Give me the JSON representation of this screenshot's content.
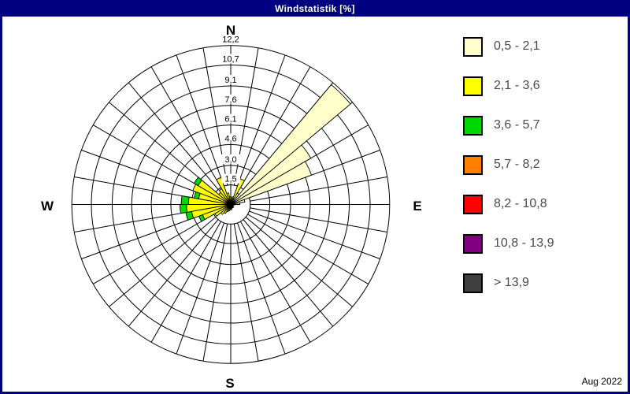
{
  "header": {
    "title": "Windstatistik [%]"
  },
  "chart_data": {
    "type": "wind-rose",
    "title": "Windstatistik [%]",
    "period": "Aug 2022",
    "units": "%",
    "compass": {
      "north": "N",
      "east": "E",
      "south": "S",
      "west": "W"
    },
    "ring_values": [
      1.5,
      3.0,
      4.6,
      6.1,
      7.6,
      9.1,
      10.7,
      12.2
    ],
    "ring_labels": [
      "1,5",
      "3,0",
      "4,6",
      "6,1",
      "7,6",
      "9,1",
      "10,7",
      "12,2"
    ],
    "max_value": 12.2,
    "sector_width_deg": 10,
    "grid": {
      "spokes_every_deg": 10,
      "line_color": "#000000",
      "background": "#ffffff"
    },
    "legend_position": "right",
    "speed_classes": [
      {
        "label": "0,5 - 2,1",
        "color": "#FFFFCC"
      },
      {
        "label": "2,1 - 3,6",
        "color": "#FFFF00"
      },
      {
        "label": "3,6 - 5,7",
        "color": "#00D900"
      },
      {
        "label": "5,7 - 8,2",
        "color": "#FF8000"
      },
      {
        "label": "8,2 - 10,8",
        "color": "#FF0000"
      },
      {
        "label": "10,8 - 13,9",
        "color": "#800080"
      },
      {
        "label": "> 13,9",
        "color": "#3F3F3F"
      }
    ],
    "sectors": [
      {
        "from_deg": 0,
        "segments": [
          0.5,
          0,
          0
        ]
      },
      {
        "from_deg": 10,
        "segments": [
          0.6,
          0,
          0
        ]
      },
      {
        "from_deg": 20,
        "segments": [
          0.5,
          1.6,
          0
        ]
      },
      {
        "from_deg": 30,
        "segments": [
          1.0,
          0,
          0
        ]
      },
      {
        "from_deg": 40,
        "segments": [
          12.0,
          0,
          0
        ]
      },
      {
        "from_deg": 50,
        "segments": [
          7.1,
          0,
          0
        ]
      },
      {
        "from_deg": 60,
        "segments": [
          6.6,
          0,
          0
        ]
      },
      {
        "from_deg": 70,
        "segments": [
          1.1,
          0,
          0
        ]
      },
      {
        "from_deg": 80,
        "segments": [
          0.7,
          0,
          0
        ]
      },
      {
        "from_deg": 90,
        "segments": [
          0.3,
          0,
          0
        ]
      },
      {
        "from_deg": 100,
        "segments": [
          0.2,
          0,
          0
        ]
      },
      {
        "from_deg": 110,
        "segments": [
          0.2,
          0,
          0
        ]
      },
      {
        "from_deg": 120,
        "segments": [
          0.2,
          0,
          0
        ]
      },
      {
        "from_deg": 130,
        "segments": [
          0.3,
          0,
          0
        ]
      },
      {
        "from_deg": 140,
        "segments": [
          0.2,
          0,
          0
        ]
      },
      {
        "from_deg": 150,
        "segments": [
          0.3,
          0,
          0
        ]
      },
      {
        "from_deg": 160,
        "segments": [
          0.3,
          0,
          0
        ]
      },
      {
        "from_deg": 170,
        "segments": [
          0.4,
          0,
          0
        ]
      },
      {
        "from_deg": 180,
        "segments": [
          0.4,
          0,
          0
        ]
      },
      {
        "from_deg": 190,
        "segments": [
          0.3,
          0.2,
          0
        ]
      },
      {
        "from_deg": 200,
        "segments": [
          0.3,
          0.3,
          0
        ]
      },
      {
        "from_deg": 210,
        "segments": [
          0.3,
          0.5,
          0
        ]
      },
      {
        "from_deg": 220,
        "segments": [
          0.3,
          0.7,
          0
        ]
      },
      {
        "from_deg": 230,
        "segments": [
          0.3,
          1.1,
          0
        ]
      },
      {
        "from_deg": 240,
        "segments": [
          0.3,
          2.0,
          0.3
        ]
      },
      {
        "from_deg": 250,
        "segments": [
          0.3,
          2.75,
          0.45
        ]
      },
      {
        "from_deg": 260,
        "segments": [
          0.3,
          3.1,
          0.5
        ]
      },
      {
        "from_deg": 270,
        "segments": [
          0.3,
          2.95,
          0.55
        ]
      },
      {
        "from_deg": 280,
        "segments": [
          0.3,
          2.2,
          0.35
        ]
      },
      {
        "from_deg": 290,
        "segments": [
          0.3,
          2.8,
          0
        ]
      },
      {
        "from_deg": 300,
        "segments": [
          0.3,
          2.6,
          0.35
        ]
      },
      {
        "from_deg": 310,
        "segments": [
          0.3,
          0.9,
          0
        ]
      },
      {
        "from_deg": 320,
        "segments": [
          0.3,
          1.1,
          0
        ]
      },
      {
        "from_deg": 330,
        "segments": [
          0.3,
          1.9,
          0
        ]
      },
      {
        "from_deg": 340,
        "segments": [
          0.3,
          0.6,
          0
        ]
      },
      {
        "from_deg": 350,
        "segments": [
          0.3,
          0.3,
          0
        ]
      }
    ]
  }
}
